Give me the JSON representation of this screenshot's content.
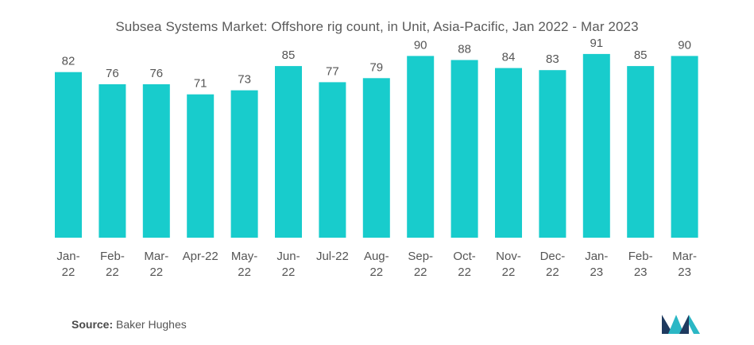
{
  "title": "Subsea Systems Market: Offshore rig count, in Unit, Asia-Pacific, Jan 2022 - Mar 2023",
  "source": {
    "label": "Source:",
    "value": "Baker Hughes"
  },
  "colors": {
    "bar": "#18CCCC",
    "text": "#555555",
    "logo_dark": "#1F3A5F",
    "logo_teal": "#2BB7C5"
  },
  "chart_data": {
    "type": "bar",
    "title": "Subsea Systems Market: Offshore rig count, in Unit, Asia-Pacific, Jan 2022 - Mar 2023",
    "xlabel": "",
    "ylabel": "",
    "ylim": [
      0,
      100
    ],
    "grid": false,
    "categories": [
      "Jan-22",
      "Feb-22",
      "Mar-22",
      "Apr-22",
      "May-22",
      "Jun-22",
      "Jul-22",
      "Aug-22",
      "Sep-22",
      "Oct-22",
      "Nov-22",
      "Dec-22",
      "Jan-23",
      "Feb-23",
      "Mar-23"
    ],
    "tick_labels": [
      [
        "Jan-",
        "22"
      ],
      [
        "Feb-",
        "22"
      ],
      [
        "Mar-",
        "22"
      ],
      [
        "Apr-22"
      ],
      [
        "May-",
        "22"
      ],
      [
        "Jun-",
        "22"
      ],
      [
        "Jul-22"
      ],
      [
        "Aug-",
        "22"
      ],
      [
        "Sep-",
        "22"
      ],
      [
        "Oct-",
        "22"
      ],
      [
        "Nov-",
        "22"
      ],
      [
        "Dec-",
        "22"
      ],
      [
        "Jan-",
        "23"
      ],
      [
        "Feb-",
        "23"
      ],
      [
        "Mar-",
        "23"
      ]
    ],
    "values": [
      82,
      76,
      76,
      71,
      73,
      85,
      77,
      79,
      90,
      88,
      84,
      83,
      91,
      85,
      90
    ]
  }
}
